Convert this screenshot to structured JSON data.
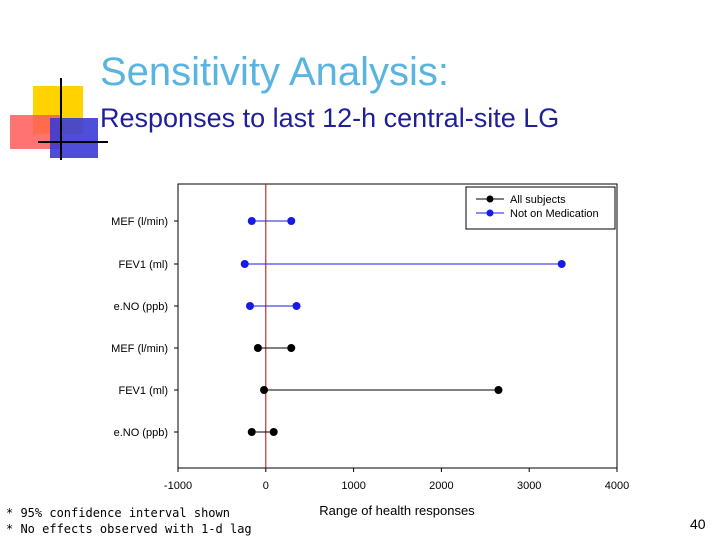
{
  "slide": {
    "title": "Sensitivity Analysis:",
    "subtitle": "Responses to last 12-h central-site LG",
    "footnotes": [
      "* 95% confidence interval shown",
      "* No effects observed with 1-d lag"
    ],
    "page_number": "40"
  },
  "colors": {
    "title": "#5ab4e0",
    "subtitle": "#1f1f99",
    "reference_line": "#cc0000",
    "all_subjects": "#000000",
    "not_on_medication": "#1a1ae6"
  },
  "chart_data": {
    "type": "interval",
    "xlabel": "Range of health responses",
    "xlim": [
      -1000,
      4000
    ],
    "xticks": [
      -1000,
      0,
      1000,
      2000,
      3000,
      4000
    ],
    "reference_x": 0,
    "legend_position": "top-right",
    "categories": [
      "MEF (l/min)",
      "FEV1 (ml)",
      "e.NO (ppb)",
      "MEF (l/min)",
      "FEV1 (ml)",
      "e.NO (ppb)"
    ],
    "series": [
      {
        "name": "All subjects",
        "color": "#000000",
        "intervals": [
          {
            "label": "MEF (l/min)",
            "low": -90,
            "high": 290
          },
          {
            "label": "FEV1 (ml)",
            "low": -20,
            "high": 2650
          },
          {
            "label": "e.NO (ppb)",
            "low": -160,
            "high": 90
          }
        ]
      },
      {
        "name": "Not on Medication",
        "color": "#1a1ae6",
        "intervals": [
          {
            "label": "MEF (l/min)",
            "low": -160,
            "high": 290
          },
          {
            "label": "FEV1 (ml)",
            "low": -240,
            "high": 3370
          },
          {
            "label": "e.NO (ppb)",
            "low": -180,
            "high": 350
          }
        ]
      }
    ]
  }
}
